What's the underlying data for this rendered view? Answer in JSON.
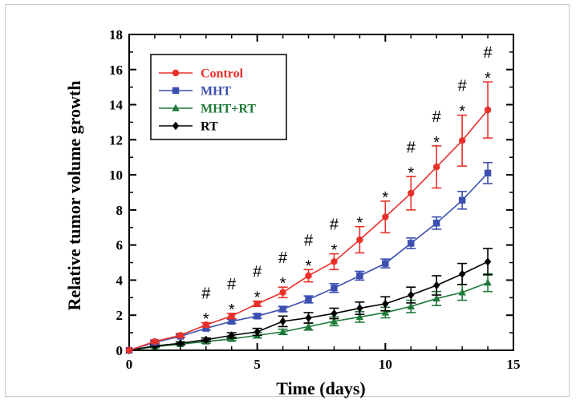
{
  "chart_data": {
    "type": "line",
    "title": "",
    "xlabel": "Time (days)",
    "ylabel": "Relative tumor volume growth",
    "xlim": [
      0,
      15
    ],
    "ylim": [
      0,
      18
    ],
    "xticks": [
      "0",
      "5",
      "10",
      "15"
    ],
    "yticks": [
      "0",
      "2",
      "4",
      "6",
      "8",
      "10",
      "12",
      "14",
      "16",
      "18"
    ],
    "grid": false,
    "legend_position": "top-left",
    "x": [
      0,
      1,
      2,
      3,
      4,
      5,
      6,
      7,
      8,
      9,
      10,
      11,
      12,
      13,
      14
    ],
    "series": [
      {
        "name": "Control",
        "color": "#e8312a",
        "marker": "circle",
        "values": [
          0,
          0.5,
          0.85,
          1.45,
          1.95,
          2.65,
          3.3,
          4.25,
          5.05,
          6.3,
          7.6,
          8.95,
          10.45,
          11.95,
          13.7
        ],
        "errors": [
          0,
          0.08,
          0.1,
          0.12,
          0.15,
          0.15,
          0.3,
          0.35,
          0.45,
          0.75,
          0.9,
          0.95,
          1.2,
          1.45,
          1.6
        ]
      },
      {
        "name": "MHT",
        "color": "#3c4fb0",
        "marker": "square",
        "values": [
          0,
          0.45,
          0.8,
          1.25,
          1.65,
          1.95,
          2.35,
          2.9,
          3.55,
          4.25,
          4.95,
          6.1,
          7.25,
          8.55,
          10.1
        ],
        "errors": [
          0,
          0.06,
          0.08,
          0.1,
          0.12,
          0.12,
          0.15,
          0.2,
          0.25,
          0.25,
          0.25,
          0.3,
          0.35,
          0.5,
          0.6
        ]
      },
      {
        "name": "MHT+RT",
        "color": "#1f7a3a",
        "marker": "triangle",
        "values": [
          0,
          0.2,
          0.35,
          0.5,
          0.65,
          0.85,
          1.05,
          1.35,
          1.65,
          1.9,
          2.15,
          2.5,
          2.95,
          3.3,
          3.85
        ],
        "errors": [
          0,
          0.05,
          0.05,
          0.1,
          0.1,
          0.15,
          0.15,
          0.2,
          0.25,
          0.3,
          0.3,
          0.35,
          0.4,
          0.45,
          0.5
        ]
      },
      {
        "name": "RT",
        "color": "#000000",
        "marker": "diamond",
        "values": [
          0,
          0.25,
          0.4,
          0.6,
          0.85,
          1.05,
          1.65,
          1.85,
          2.1,
          2.4,
          2.65,
          3.15,
          3.7,
          4.35,
          5.05
        ],
        "errors": [
          0,
          0.05,
          0.08,
          0.1,
          0.15,
          0.2,
          0.3,
          0.3,
          0.3,
          0.35,
          0.4,
          0.45,
          0.55,
          0.6,
          0.75
        ]
      }
    ],
    "annotations": [
      {
        "x": 3,
        "labels": [
          "#",
          "*"
        ]
      },
      {
        "x": 4,
        "labels": [
          "#",
          "*"
        ]
      },
      {
        "x": 5,
        "labels": [
          "#",
          "*"
        ]
      },
      {
        "x": 6,
        "labels": [
          "#",
          "*"
        ]
      },
      {
        "x": 7,
        "labels": [
          "#",
          "*"
        ]
      },
      {
        "x": 8,
        "labels": [
          "#",
          "*"
        ]
      },
      {
        "x": 9,
        "labels": [
          "*"
        ]
      },
      {
        "x": 10,
        "labels": [
          "*"
        ]
      },
      {
        "x": 11,
        "labels": [
          "#",
          "*"
        ]
      },
      {
        "x": 12,
        "labels": [
          "#",
          "*"
        ]
      },
      {
        "x": 13,
        "labels": [
          "#",
          "*"
        ]
      },
      {
        "x": 14,
        "labels": [
          "#",
          "*"
        ]
      }
    ]
  }
}
